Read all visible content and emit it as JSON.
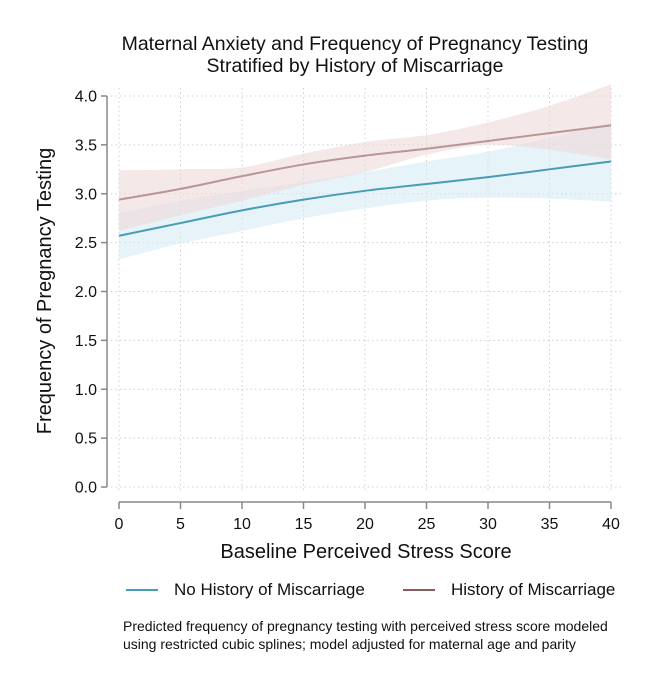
{
  "chart_data": {
    "type": "line",
    "title": "Maternal Anxiety and Frequency of Pregnancy Testing",
    "subtitle": "Stratified by History of Miscarriage",
    "xlabel": "Baseline Perceived Stress Score",
    "ylabel": "Frequency of Pregnancy Testing",
    "xlim": [
      0,
      40
    ],
    "ylim": [
      0,
      4.0
    ],
    "xticks": [
      "0",
      "5",
      "10",
      "15",
      "20",
      "25",
      "30",
      "35",
      "40"
    ],
    "yticks": [
      "0.0",
      "0.5",
      "1.0",
      "1.5",
      "2.0",
      "2.5",
      "3.0",
      "3.5",
      "4.0"
    ],
    "grid": true,
    "legend_position": "bottom",
    "x": [
      0,
      5,
      10,
      15,
      20,
      25,
      30,
      35,
      40
    ],
    "series": [
      {
        "name": "No History of Miscarriage",
        "color": "#4a9bb5",
        "band_color": "#d6ebf3",
        "values": [
          2.57,
          2.7,
          2.83,
          2.94,
          3.03,
          3.1,
          3.17,
          3.25,
          3.33
        ],
        "ci_lower": [
          2.33,
          2.49,
          2.62,
          2.75,
          2.85,
          2.93,
          2.96,
          2.95,
          2.92
        ],
        "ci_upper": [
          2.8,
          2.93,
          3.03,
          3.12,
          3.22,
          3.33,
          3.43,
          3.57,
          3.73
        ]
      },
      {
        "name": "History of Miscarriage",
        "color": "#b89696",
        "band_color": "#efd8db",
        "values": [
          2.94,
          3.05,
          3.18,
          3.3,
          3.39,
          3.46,
          3.54,
          3.62,
          3.7
        ],
        "ci_lower": [
          2.62,
          2.78,
          2.93,
          3.09,
          3.22,
          3.4,
          3.5,
          3.45,
          3.35
        ],
        "ci_upper": [
          3.24,
          3.25,
          3.27,
          3.41,
          3.53,
          3.6,
          3.73,
          3.9,
          4.12
        ]
      }
    ],
    "legend_line_colors": [
      "#4a9bb5",
      "#8a5a5e"
    ],
    "annotation": "Predicted frequency of pregnancy testing with perceived stress score modeled using restricted cubic splines; model adjusted for maternal age and parity"
  }
}
